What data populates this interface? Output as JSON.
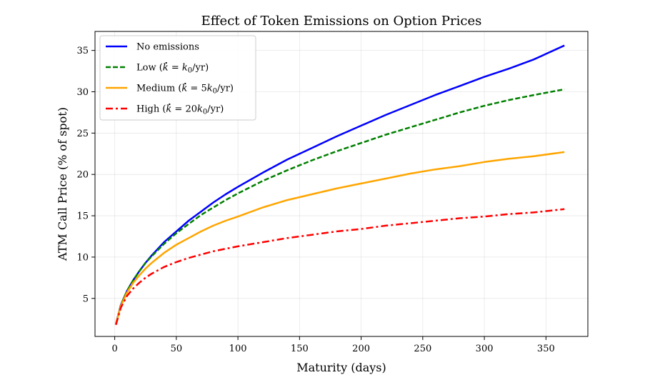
{
  "chart_data": {
    "type": "line",
    "title": "Effect of Token Emissions on Option Prices",
    "xlabel": "Maturity (days)",
    "ylabel": "ATM Call Price (% of spot)",
    "xlim": [
      -16,
      384
    ],
    "ylim": [
      0.4,
      37.3
    ],
    "xticks": [
      0,
      50,
      100,
      150,
      200,
      250,
      300,
      350
    ],
    "yticks": [
      5,
      10,
      15,
      20,
      25,
      30,
      35
    ],
    "grid": true,
    "legend_position": "top-left",
    "x": [
      1,
      5,
      10,
      15,
      20,
      25,
      30,
      40,
      50,
      60,
      70,
      80,
      90,
      100,
      120,
      140,
      160,
      180,
      200,
      220,
      240,
      260,
      280,
      300,
      320,
      340,
      365
    ],
    "series": [
      {
        "name": "No emissions",
        "color": "#0000ff",
        "dash": "solid",
        "values": [
          1.9,
          4.2,
          5.9,
          7.2,
          8.3,
          9.3,
          10.2,
          11.8,
          13.1,
          14.4,
          15.5,
          16.6,
          17.6,
          18.5,
          20.2,
          21.8,
          23.2,
          24.6,
          25.9,
          27.2,
          28.4,
          29.6,
          30.7,
          31.8,
          32.8,
          33.9,
          35.6
        ]
      },
      {
        "name": "Low (k̇ = k0/yr)",
        "color": "#008000",
        "dash": "dashed",
        "values": [
          1.9,
          4.2,
          5.9,
          7.2,
          8.3,
          9.3,
          10.1,
          11.6,
          12.9,
          14.0,
          15.1,
          16.0,
          16.9,
          17.7,
          19.2,
          20.5,
          21.7,
          22.8,
          23.8,
          24.8,
          25.7,
          26.6,
          27.5,
          28.3,
          29.0,
          29.6,
          30.3
        ]
      },
      {
        "name": "Medium (k̇ = 5k0/yr)",
        "color": "#ffa500",
        "dash": "solid",
        "values": [
          1.9,
          4.1,
          5.7,
          6.9,
          7.8,
          8.6,
          9.3,
          10.5,
          11.5,
          12.3,
          13.1,
          13.8,
          14.4,
          14.9,
          16.0,
          16.9,
          17.6,
          18.3,
          18.9,
          19.5,
          20.1,
          20.6,
          21.0,
          21.5,
          21.9,
          22.2,
          22.7
        ]
      },
      {
        "name": "High (k̇ = 20k0/yr)",
        "color": "#ff0000",
        "dash": "dashdot",
        "values": [
          1.8,
          3.9,
          5.3,
          6.2,
          6.9,
          7.5,
          8.0,
          8.8,
          9.4,
          9.9,
          10.3,
          10.7,
          11.0,
          11.3,
          11.8,
          12.3,
          12.7,
          13.1,
          13.4,
          13.8,
          14.1,
          14.4,
          14.7,
          14.9,
          15.2,
          15.4,
          15.8
        ]
      }
    ],
    "legend": [
      {
        "prefix": "No emissions",
        "k": "",
        "eq": "",
        "kv": "",
        "sub": "",
        "suffix": ""
      },
      {
        "prefix": "Low (",
        "k": "k",
        "eq": " = ",
        "kv": "k",
        "sub": "0",
        "suffix": "/yr)"
      },
      {
        "prefix": "Medium (",
        "k": "k",
        "eq": " = 5",
        "kv": "k",
        "sub": "0",
        "suffix": "/yr)"
      },
      {
        "prefix": "High (",
        "k": "k",
        "eq": " = 20",
        "kv": "k",
        "sub": "0",
        "suffix": "/yr)"
      }
    ]
  }
}
